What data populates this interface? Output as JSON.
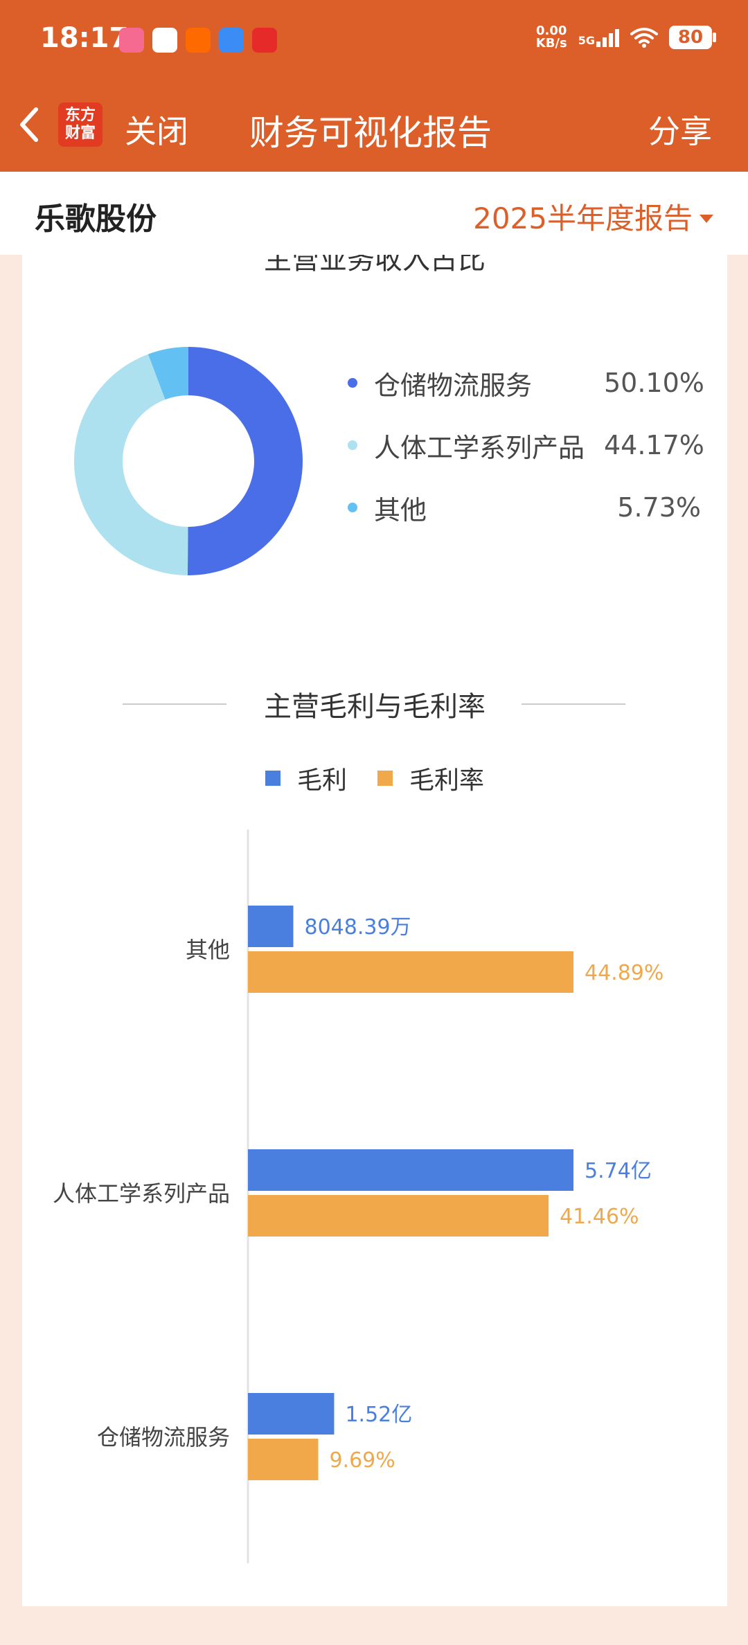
{
  "status_bar": {
    "time": "18:17",
    "speed_value": "0.00",
    "speed_unit": "KB/s",
    "network": "5G",
    "battery": "80"
  },
  "header": {
    "back_icon": "chevron-left-icon",
    "logo_text": "东方财富",
    "close_label": "关闭",
    "title": "财务可视化报告",
    "share_label": "分享"
  },
  "subheader": {
    "company": "乐歌股份",
    "report": "2025半年度报告"
  },
  "pie_section": {
    "title": "主营业务收入占比",
    "items": [
      {
        "name": "仓储物流服务",
        "value": "50.10%",
        "color": "#4a6ee8"
      },
      {
        "name": "人体工学系列产品",
        "value": "44.17%",
        "color": "#aee1f0"
      },
      {
        "name": "其他",
        "value": "5.73%",
        "color": "#63c0f2"
      }
    ]
  },
  "bar_section": {
    "title": "主营毛利与毛利率",
    "legend": [
      {
        "name": "毛利",
        "color": "#4a7fe0"
      },
      {
        "name": "毛利率",
        "color": "#f0a84a"
      }
    ]
  },
  "chart_data": [
    {
      "type": "pie",
      "title": "主营业务收入占比",
      "categories": [
        "仓储物流服务",
        "人体工学系列产品",
        "其他"
      ],
      "values": [
        50.1,
        44.17,
        5.73
      ],
      "colors": [
        "#4a6ee8",
        "#aee1f0",
        "#63c0f2"
      ]
    },
    {
      "type": "bar",
      "orientation": "horizontal",
      "title": "主营毛利与毛利率",
      "categories": [
        "其他",
        "人体工学系列产品",
        "仓储物流服务"
      ],
      "series": [
        {
          "name": "毛利",
          "values": [
            0.8,
            5.74,
            1.52
          ],
          "labels": [
            "8048.39万",
            "5.74亿",
            "1.52亿"
          ],
          "color": "#4a7fe0"
        },
        {
          "name": "毛利率",
          "values": [
            44.89,
            41.46,
            9.69
          ],
          "labels": [
            "44.89%",
            "41.46%",
            "9.69%"
          ],
          "color": "#f0a84a"
        }
      ]
    }
  ]
}
